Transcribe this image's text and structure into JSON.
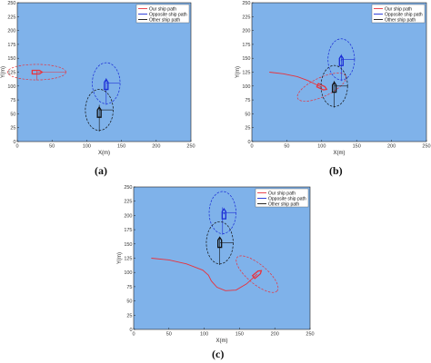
{
  "panel_labels": [
    "(a)",
    "(b)",
    "(c)"
  ],
  "legend_colors": {
    "our": "#e8323c",
    "opposite": "#1a2cd6",
    "other": "#111111"
  },
  "plot_bg": "#7fb2ea",
  "chart_data": [
    {
      "type": "line",
      "xlabel": "X(m)",
      "ylabel": "Y(m)",
      "xlim": [
        0,
        250
      ],
      "ylim": [
        0,
        250
      ],
      "x_ticks": [
        "0",
        "50",
        "100",
        "150",
        "200",
        "250"
      ],
      "y_ticks": [
        "0",
        "25",
        "50",
        "75",
        "100",
        "125",
        "150",
        "175",
        "200",
        "225",
        "250"
      ],
      "legend": {
        "position": "top-right",
        "entries": [
          "Our ship path",
          "Opposite ship path",
          "Other ship path"
        ]
      },
      "grid": false,
      "series": [
        {
          "name": "Our ship path",
          "color": "#e8323c",
          "path": [
            [
              28,
              125
            ]
          ],
          "ship": {
            "x": 28,
            "y": 125,
            "heading": 0
          },
          "domain": {
            "cx": 28,
            "cy": 125,
            "rx": 42,
            "ry": 14,
            "angle": 0
          }
        },
        {
          "name": "Opposite ship path",
          "color": "#1a2cd6",
          "path": [
            [
              128,
              102
            ]
          ],
          "ship": {
            "x": 128,
            "y": 102,
            "heading": 90
          },
          "domain": {
            "cx": 128,
            "cy": 105,
            "rx": 20,
            "ry": 37,
            "angle": 0
          }
        },
        {
          "name": "Other ship path",
          "color": "#111111",
          "path": [
            [
              118,
              52
            ]
          ],
          "ship": {
            "x": 118,
            "y": 52,
            "heading": 90
          },
          "domain": {
            "cx": 118,
            "cy": 57,
            "rx": 20,
            "ry": 37,
            "angle": 0
          }
        }
      ]
    },
    {
      "type": "line",
      "xlabel": "X(m)",
      "ylabel": "Y(m)",
      "xlim": [
        0,
        250
      ],
      "ylim": [
        0,
        250
      ],
      "x_ticks": [
        "0",
        "50",
        "100",
        "150",
        "200",
        "250"
      ],
      "y_ticks": [
        "0",
        "25",
        "50",
        "75",
        "100",
        "125",
        "150",
        "175",
        "200",
        "225",
        "250"
      ],
      "legend": {
        "position": "top-right",
        "entries": [
          "Our ship path",
          "Opposite ship path",
          "Other ship path"
        ]
      },
      "grid": false,
      "series": [
        {
          "name": "Our ship path",
          "color": "#e8323c",
          "path": [
            [
              25,
              125
            ],
            [
              45,
              122
            ],
            [
              65,
              117
            ],
            [
              80,
              110
            ],
            [
              90,
              104
            ],
            [
              100,
              98
            ]
          ],
          "ship": {
            "x": 100,
            "y": 98,
            "heading": -25
          },
          "domain": {
            "cx": 100,
            "cy": 98,
            "rx": 38,
            "ry": 17,
            "angle": 25
          }
        },
        {
          "name": "Opposite ship path",
          "color": "#1a2cd6",
          "path": [
            [
              128,
              145
            ],
            [
              128,
              147
            ]
          ],
          "ship": {
            "x": 128,
            "y": 145,
            "heading": 90
          },
          "domain": {
            "cx": 128,
            "cy": 148,
            "rx": 19,
            "ry": 37,
            "angle": 0
          }
        },
        {
          "name": "Other ship path",
          "color": "#111111",
          "path": [
            [
              118,
              97
            ]
          ],
          "ship": {
            "x": 118,
            "y": 97,
            "heading": 90
          },
          "domain": {
            "cx": 118,
            "cy": 100,
            "rx": 19,
            "ry": 37,
            "angle": 0
          }
        }
      ]
    },
    {
      "type": "line",
      "xlabel": "X(m)",
      "ylabel": "Y(m)",
      "xlim": [
        0,
        250
      ],
      "ylim": [
        0,
        250
      ],
      "x_ticks": [
        "0",
        "50",
        "100",
        "150",
        "200",
        "250"
      ],
      "y_ticks": [
        "0",
        "25",
        "50",
        "75",
        "100",
        "125",
        "150",
        "175",
        "200",
        "225",
        "250"
      ],
      "legend": {
        "position": "top-right",
        "entries": [
          "Our ship path",
          "Opposite ship path",
          "Other ship path"
        ]
      },
      "grid": false,
      "series": [
        {
          "name": "Our ship path",
          "color": "#e8323c",
          "path": [
            [
              25,
              125
            ],
            [
              50,
              122
            ],
            [
              75,
              115
            ],
            [
              98,
              104
            ],
            [
              106,
              95
            ],
            [
              110,
              85
            ],
            [
              118,
              74
            ],
            [
              130,
              68
            ],
            [
              145,
              69
            ],
            [
              160,
              80
            ],
            [
              175,
              97
            ]
          ],
          "ship": {
            "x": 175,
            "y": 97,
            "heading": 40
          },
          "domain": {
            "cx": 175,
            "cy": 97,
            "rx": 37,
            "ry": 17,
            "angle": -40
          }
        },
        {
          "name": "Opposite ship path",
          "color": "#1a2cd6",
          "path": [
            [
              128,
              202
            ],
            [
              128,
              205
            ]
          ],
          "ship": {
            "x": 128,
            "y": 202,
            "heading": 90
          },
          "domain": {
            "cx": 126,
            "cy": 205,
            "rx": 19,
            "ry": 37,
            "angle": 0
          }
        },
        {
          "name": "Other ship path",
          "color": "#111111",
          "path": [
            [
              122,
              152
            ]
          ],
          "ship": {
            "x": 122,
            "y": 152,
            "heading": 90
          },
          "domain": {
            "cx": 122,
            "cy": 152,
            "rx": 19,
            "ry": 37,
            "angle": 0
          }
        }
      ]
    }
  ]
}
